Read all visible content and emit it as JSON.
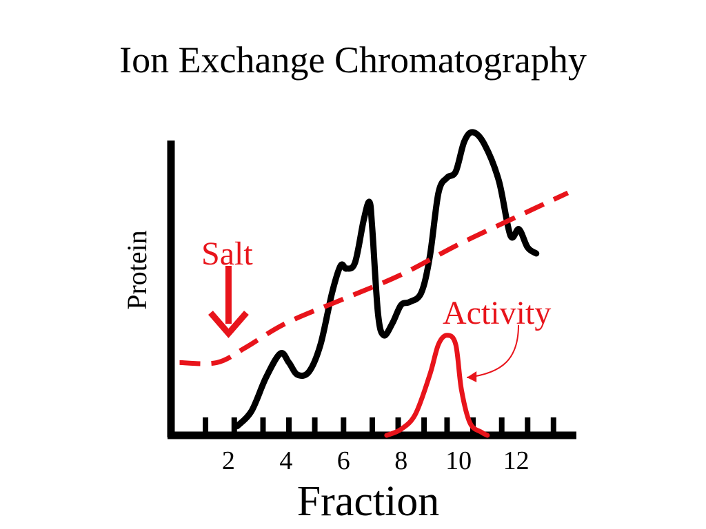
{
  "chart_data": {
    "type": "line",
    "title": "Ion Exchange Chromatography",
    "xlabel": "Fraction",
    "ylabel": "Protein",
    "xlim": [
      0,
      14
    ],
    "ylim": [
      0,
      1
    ],
    "grid": false,
    "x_tick_labels": [
      "2",
      "4",
      "6",
      "8",
      "10",
      "12"
    ],
    "x_tick_values": [
      2,
      4,
      6,
      8,
      10,
      12
    ],
    "minor_tick_values": [
      1.2,
      2.2,
      3.2,
      4.1,
      5.0,
      6.0,
      7.0,
      7.9,
      8.8,
      9.6,
      10.5,
      11.5,
      12.4,
      13.3
    ],
    "series": [
      {
        "key": "protein",
        "style": "solid",
        "color": "#000000",
        "points": [
          [
            2.3,
            0.03
          ],
          [
            2.8,
            0.08
          ],
          [
            3.3,
            0.19
          ],
          [
            3.8,
            0.27
          ],
          [
            4.1,
            0.24
          ],
          [
            4.4,
            0.2
          ],
          [
            4.8,
            0.21
          ],
          [
            5.2,
            0.3
          ],
          [
            5.6,
            0.47
          ],
          [
            5.9,
            0.56
          ],
          [
            6.1,
            0.55
          ],
          [
            6.4,
            0.57
          ],
          [
            6.7,
            0.71
          ],
          [
            6.9,
            0.77
          ],
          [
            7.0,
            0.68
          ],
          [
            7.2,
            0.4
          ],
          [
            7.4,
            0.33
          ],
          [
            7.7,
            0.37
          ],
          [
            8.0,
            0.43
          ],
          [
            8.3,
            0.44
          ],
          [
            8.7,
            0.47
          ],
          [
            9.0,
            0.59
          ],
          [
            9.3,
            0.8
          ],
          [
            9.6,
            0.85
          ],
          [
            9.9,
            0.87
          ],
          [
            10.2,
            0.97
          ],
          [
            10.5,
            1.0
          ],
          [
            10.9,
            0.96
          ],
          [
            11.4,
            0.84
          ],
          [
            11.8,
            0.66
          ],
          [
            12.1,
            0.68
          ],
          [
            12.4,
            0.62
          ],
          [
            12.7,
            0.6
          ]
        ]
      },
      {
        "key": "salt",
        "name": "Salt",
        "style": "dashed",
        "color": "#e8141b",
        "points": [
          [
            0.3,
            0.24
          ],
          [
            1.6,
            0.24
          ],
          [
            2.6,
            0.29
          ],
          [
            4.0,
            0.37
          ],
          [
            6.0,
            0.45
          ],
          [
            8.0,
            0.53
          ],
          [
            10.0,
            0.63
          ],
          [
            12.0,
            0.72
          ],
          [
            13.8,
            0.8
          ]
        ]
      },
      {
        "key": "activity",
        "name": "Activity",
        "style": "solid",
        "color": "#e8141b",
        "points": [
          [
            7.5,
            0.0
          ],
          [
            8.0,
            0.02
          ],
          [
            8.5,
            0.07
          ],
          [
            9.0,
            0.2
          ],
          [
            9.3,
            0.3
          ],
          [
            9.6,
            0.33
          ],
          [
            9.9,
            0.3
          ],
          [
            10.1,
            0.15
          ],
          [
            10.4,
            0.04
          ],
          [
            10.8,
            0.01
          ],
          [
            11.0,
            0.0
          ]
        ]
      }
    ],
    "annotations": {
      "salt_label": "Salt",
      "salt_arrow_x": 2.0,
      "activity_label": "Activity",
      "activity_arrow_target_x": 10.0
    }
  }
}
